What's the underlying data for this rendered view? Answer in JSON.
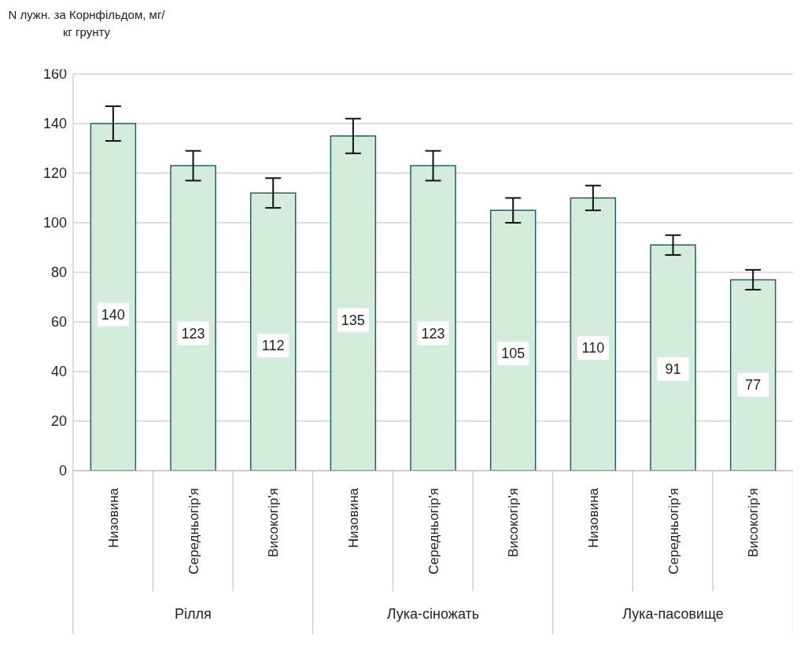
{
  "chart_data": {
    "type": "bar",
    "ylabel": "N лужн. за Корнфільдом, мг/кг грунту",
    "categories": [
      "Низовина",
      "Середньогір'я",
      "Високогір'я",
      "Низовина",
      "Середньогір'я",
      "Високогір'я",
      "Низовина",
      "Середньогір'я",
      "Високогір'я"
    ],
    "values": [
      140,
      123,
      112,
      135,
      123,
      105,
      110,
      91,
      77
    ],
    "errors": [
      7,
      6,
      6,
      7,
      6,
      5,
      5,
      4,
      4
    ],
    "color": "#d4ecdc",
    "ylim": [
      0,
      160
    ],
    "yticks": [
      0,
      20,
      40,
      60,
      80,
      100,
      120,
      140,
      160
    ],
    "grid": "y",
    "data_labels": true,
    "annotations": [
      "Рілля",
      "Лука-сіножать",
      "Лука-пасовище"
    ]
  }
}
